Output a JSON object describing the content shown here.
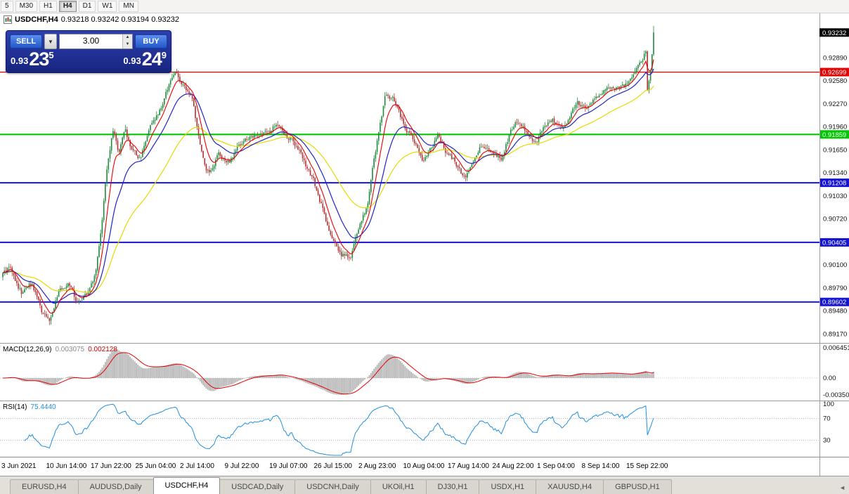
{
  "colors": {
    "up": "#1f8a3d",
    "down": "#b03232",
    "ma_fast": "#e60000",
    "ma_mid": "#2323c8",
    "ma_slow": "#e6da00",
    "macd_hist": "#b2b2b2",
    "macd_signal": "#e60000",
    "rsi_line": "#1f8fe0",
    "level_red": "#e60000",
    "level_green": "#00c800",
    "level_blue": "#1414d2",
    "badge_current": "#000000"
  },
  "toolbar": {
    "timeframes": [
      "5",
      "M30",
      "H1",
      "H4",
      "D1",
      "W1",
      "MN"
    ],
    "active": "H4"
  },
  "chart_header": {
    "symbol": "USDCHF,H4",
    "ohlc": "0.93218 0.93242 0.93194 0.93232"
  },
  "trade_panel": {
    "sell_label": "SELL",
    "buy_label": "BUY",
    "volume": "3.00",
    "sell_price": {
      "prefix": "0.93",
      "big": "23",
      "sup": "5"
    },
    "buy_price": {
      "prefix": "0.93",
      "big": "24",
      "sup": "9"
    }
  },
  "icons": {
    "chevron_down": "▼",
    "spin_up": "▲",
    "spin_down": "▼",
    "tab_left": "◄",
    "tab_right": "►"
  },
  "price_axis": {
    "current": "0.93232",
    "ticks": [
      "0.92890",
      "0.92580",
      "0.92270",
      "0.91960",
      "0.91650",
      "0.91340",
      "0.91030",
      "0.90720",
      "0.90410",
      "0.90100",
      "0.89790",
      "0.89480",
      "0.89170"
    ]
  },
  "time_axis": [
    "3 Jun 2021",
    "10 Jun 14:00",
    "17 Jun 22:00",
    "25 Jun 04:00",
    "2 Jul 14:00",
    "9 Jul 22:00",
    "19 Jul 07:00",
    "26 Jul 15:00",
    "2 Aug 23:00",
    "10 Aug 04:00",
    "17 Aug 14:00",
    "24 Aug 22:00",
    "1 Sep 04:00",
    "8 Sep 14:00",
    "15 Sep 22:00"
  ],
  "macd_panel": {
    "label": "MACD(12,26,9)",
    "main_value": "0.003075",
    "signal_value": "0.002128",
    "ticks": {
      "top": "0.006451",
      "zero": "0.00",
      "bottom": "-0.00350"
    }
  },
  "rsi_panel": {
    "label": "RSI(14)",
    "value": "75.4440",
    "ticks": [
      "100",
      "70",
      "30"
    ],
    "levels": [
      70,
      30
    ]
  },
  "tabs": {
    "items": [
      "EURUSD,H4",
      "AUDUSD,Daily",
      "USDCHF,H4",
      "USDCAD,Daily",
      "USDCNH,Daily",
      "UKOil,H1",
      "DJ30,H1",
      "USDX,H1",
      "XAUUSD,H4",
      "GBPUSD,H1"
    ],
    "active_index": 2
  },
  "chart_data": {
    "type": "candlestick",
    "symbol": "USDCHF",
    "timeframe": "H4",
    "last_price": 0.93232,
    "spike_high": 0.9332,
    "y_range": {
      "top": 0.935,
      "bottom": 0.8905
    },
    "candle_count": 420,
    "tail_closes": [
      0.9245,
      0.9258,
      0.9272,
      0.9294,
      0.93232
    ],
    "price_path": [
      [
        0.0,
        0.8998
      ],
      [
        0.012,
        0.9007
      ],
      [
        0.03,
        0.897
      ],
      [
        0.045,
        0.8986
      ],
      [
        0.06,
        0.8945
      ],
      [
        0.072,
        0.8932
      ],
      [
        0.085,
        0.8972
      ],
      [
        0.1,
        0.899
      ],
      [
        0.115,
        0.8958
      ],
      [
        0.13,
        0.8972
      ],
      [
        0.143,
        0.9
      ],
      [
        0.152,
        0.906
      ],
      [
        0.16,
        0.914
      ],
      [
        0.17,
        0.9195
      ],
      [
        0.178,
        0.916
      ],
      [
        0.188,
        0.919
      ],
      [
        0.198,
        0.9165
      ],
      [
        0.212,
        0.9152
      ],
      [
        0.228,
        0.92
      ],
      [
        0.243,
        0.9222
      ],
      [
        0.256,
        0.9255
      ],
      [
        0.268,
        0.9268
      ],
      [
        0.28,
        0.9248
      ],
      [
        0.292,
        0.9232
      ],
      [
        0.306,
        0.9158
      ],
      [
        0.318,
        0.913
      ],
      [
        0.332,
        0.9162
      ],
      [
        0.348,
        0.9148
      ],
      [
        0.365,
        0.9172
      ],
      [
        0.383,
        0.9186
      ],
      [
        0.403,
        0.9192
      ],
      [
        0.423,
        0.9196
      ],
      [
        0.443,
        0.918
      ],
      [
        0.462,
        0.9152
      ],
      [
        0.478,
        0.9122
      ],
      [
        0.494,
        0.9078
      ],
      [
        0.508,
        0.904
      ],
      [
        0.522,
        0.9024
      ],
      [
        0.534,
        0.9018
      ],
      [
        0.548,
        0.9062
      ],
      [
        0.56,
        0.9092
      ],
      [
        0.574,
        0.917
      ],
      [
        0.588,
        0.9238
      ],
      [
        0.602,
        0.9232
      ],
      [
        0.616,
        0.92
      ],
      [
        0.63,
        0.9182
      ],
      [
        0.644,
        0.915
      ],
      [
        0.658,
        0.9168
      ],
      [
        0.67,
        0.9185
      ],
      [
        0.683,
        0.916
      ],
      [
        0.696,
        0.9148
      ],
      [
        0.71,
        0.9125
      ],
      [
        0.724,
        0.9155
      ],
      [
        0.738,
        0.9172
      ],
      [
        0.752,
        0.9164
      ],
      [
        0.766,
        0.9155
      ],
      [
        0.78,
        0.919
      ],
      [
        0.793,
        0.9205
      ],
      [
        0.806,
        0.9185
      ],
      [
        0.818,
        0.9172
      ],
      [
        0.832,
        0.9196
      ],
      [
        0.845,
        0.9206
      ],
      [
        0.858,
        0.9192
      ],
      [
        0.871,
        0.9212
      ],
      [
        0.884,
        0.9228
      ],
      [
        0.896,
        0.9216
      ],
      [
        0.908,
        0.923
      ],
      [
        0.92,
        0.924
      ],
      [
        0.935,
        0.925
      ],
      [
        0.95,
        0.9248
      ],
      [
        0.962,
        0.9258
      ],
      [
        0.974,
        0.9272
      ],
      [
        0.984,
        0.929
      ],
      [
        0.993,
        0.931
      ],
      [
        1.0,
        0.9323
      ]
    ],
    "levels": [
      {
        "price": 0.92699,
        "label": "0.92699",
        "color_key": "level_red",
        "width": 1.3
      },
      {
        "price": 0.91859,
        "label": "0.91859",
        "color_key": "level_green",
        "width": 2.2
      },
      {
        "price": 0.91208,
        "label": "0.91208",
        "color_key": "level_blue",
        "width": 2
      },
      {
        "price": 0.90405,
        "label": "0.90405",
        "color_key": "level_blue",
        "width": 2
      },
      {
        "price": 0.89602,
        "label": "0.89602",
        "color_key": "level_blue",
        "width": 2
      }
    ],
    "indicators": {
      "ma_periods": {
        "fast": 8,
        "mid": 21,
        "slow": 55
      },
      "macd": [
        12,
        26,
        9
      ],
      "rsi": 14
    }
  }
}
